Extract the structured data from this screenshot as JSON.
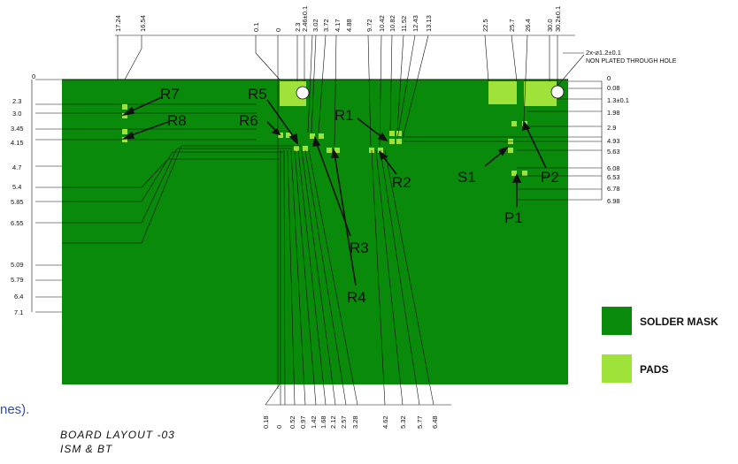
{
  "colors": {
    "solder_mask": "#0a8a0a",
    "pads": "#9fe23a",
    "lines": "#111111",
    "caption": "#2c51a8"
  },
  "top_dims": [
    "17.24",
    "16.54",
    "0.1",
    "0",
    "2.3",
    "2.46±0.1",
    "3.02",
    "3.72",
    "4.17",
    "4.88",
    "9.72",
    "10.42",
    "10.82",
    "11.52",
    "12.43",
    "13.13",
    "22.5",
    "25.7",
    "26.4",
    "30.0",
    "30.2±0.1"
  ],
  "hole_note": {
    "line1": "2x-⌀1.2±0.1",
    "line2": "NON PLATED THROUGH HOLE"
  },
  "left_dims": [
    "0",
    "2.3",
    "3.0",
    "3.45",
    "4.15",
    "4.7",
    "5.4",
    "5.85",
    "6.55",
    "5.09",
    "5.79",
    "6.4",
    "7.1"
  ],
  "right_dims": [
    "0",
    "0.08",
    "1.3±0.1",
    "1.98",
    "2.9",
    "4.93",
    "5.63",
    "6.08",
    "6.53",
    "6.78",
    "6.98"
  ],
  "bottom_dims": [
    "0.18",
    "0",
    "0.52",
    "0.97",
    "1.42",
    "1.68",
    "2.12",
    "2.57",
    "3.28",
    "4.62",
    "5.32",
    "5.77",
    "6.48"
  ],
  "component_labels": [
    "R7",
    "R8",
    "R5",
    "R6",
    "R1",
    "R2",
    "R3",
    "R4",
    "S1",
    "P2",
    "P1"
  ],
  "legend": {
    "solder_mask": "SOLDER MASK",
    "pads": "PADS"
  },
  "caption_partial": "nes).",
  "board_title": {
    "line1": "BOARD LAYOUT -03",
    "line2": "ISM & BT"
  }
}
